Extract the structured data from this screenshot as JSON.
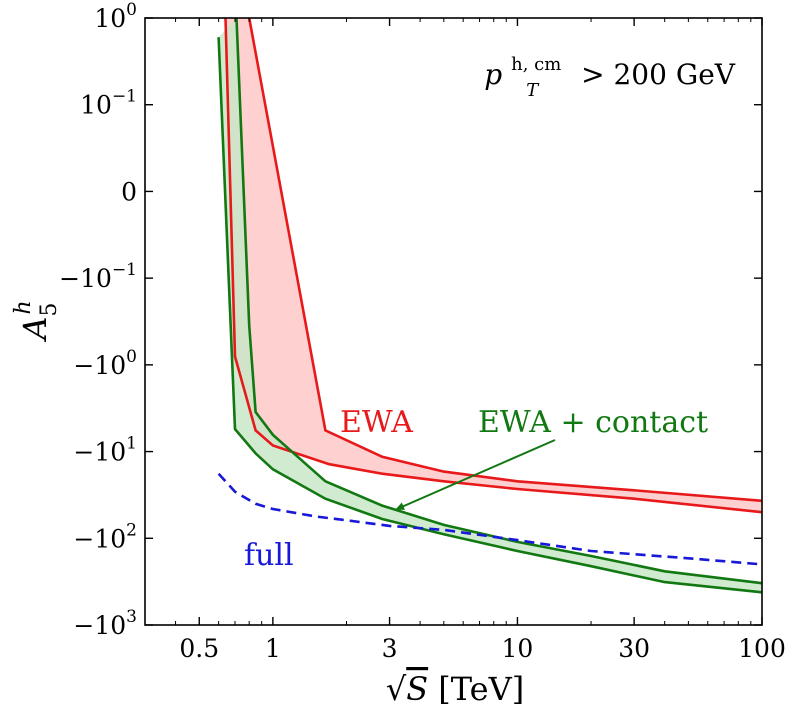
{
  "chart_data": {
    "type": "line",
    "xlabel": "√S [TeV]",
    "xlabel_parts": {
      "root": "√",
      "var": "S",
      "unit": " [TeV]"
    },
    "ylabel": "A5^h",
    "ylabel_parts": {
      "base": "A",
      "sub": "5",
      "sup": "h"
    },
    "xscale": "log",
    "xlim": [
      0.3,
      100
    ],
    "yscale": "symlog",
    "ylim": [
      -1000,
      1
    ],
    "x_ticks": [
      {
        "value": 0.5,
        "label": "0.5"
      },
      {
        "value": 1,
        "label": "1"
      },
      {
        "value": 3,
        "label": "3"
      },
      {
        "value": 10,
        "label": "10"
      },
      {
        "value": 30,
        "label": "30"
      },
      {
        "value": 100,
        "label": "100"
      }
    ],
    "y_ticks": [
      {
        "value": 1,
        "mant": "10",
        "exp": "0",
        "neg": false
      },
      {
        "value": 0.1,
        "mant": "10",
        "exp": "−1",
        "neg": false
      },
      {
        "value": 0,
        "mant": "0",
        "exp": "",
        "neg": false
      },
      {
        "value": -0.1,
        "mant": "10",
        "exp": "−1",
        "neg": true
      },
      {
        "value": -1,
        "mant": "10",
        "exp": "0",
        "neg": true
      },
      {
        "value": -10,
        "mant": "10",
        "exp": "1",
        "neg": true
      },
      {
        "value": -100,
        "mant": "10",
        "exp": "2",
        "neg": true
      },
      {
        "value": -1000,
        "mant": "10",
        "exp": "3",
        "neg": true
      }
    ],
    "cut_label": {
      "p": "p",
      "sup": "h, cm",
      "sub": "T",
      "rest": " > 200 GeV"
    },
    "series": [
      {
        "name": "EWA",
        "color": "#e8191a",
        "fill": "#ffc8c8",
        "style": "band",
        "upper": {
          "x": [
            0.8,
            1.64,
            2.8,
            5,
            10,
            30,
            100
          ],
          "y": [
            1,
            -5.7,
            -11.5,
            -17,
            -22,
            -28,
            -37
          ]
        },
        "lower": {
          "x": [
            0.64,
            0.7,
            0.85,
            1.0,
            1.7,
            2.8,
            5,
            10,
            30,
            100
          ],
          "y": [
            1,
            -0.8,
            -5.7,
            -8.5,
            -14,
            -18,
            -22,
            -27,
            -35,
            -50
          ]
        }
      },
      {
        "name": "EWA + contact",
        "color": "#127812",
        "fill": "#c9e8c9",
        "style": "band",
        "upper": {
          "x": [
            0.71,
            0.8,
            0.85,
            1.0,
            1.64,
            2.8,
            5,
            10,
            20,
            40,
            100
          ],
          "y": [
            1,
            -0.35,
            -3.5,
            -6.4,
            -22,
            -42,
            -70,
            -110,
            -160,
            -240,
            -330
          ]
        },
        "lower": {
          "x": [
            0.6,
            0.7,
            0.85,
            1.0,
            1.64,
            2.8,
            5,
            10,
            20,
            40,
            100
          ],
          "y": [
            0.6,
            -5.5,
            -10.5,
            -16,
            -35,
            -60,
            -90,
            -140,
            -210,
            -320,
            -420
          ]
        }
      },
      {
        "name": "full",
        "color": "#1818d8",
        "style": "dashed",
        "x": [
          0.6,
          0.7,
          0.85,
          1.0,
          1.5,
          2.0,
          3.0,
          5,
          10,
          20,
          50,
          100
        ],
        "y": [
          -18,
          -29,
          -40,
          -46,
          -56,
          -62,
          -72,
          -80,
          -105,
          -140,
          -170,
          -200
        ]
      }
    ],
    "annotations": [
      {
        "text": "EWA",
        "color": "#e8191a"
      },
      {
        "text": "EWA + contact",
        "color": "#127812"
      },
      {
        "text": "full",
        "color": "#1818d8"
      }
    ],
    "grid": false,
    "legend": "none"
  }
}
